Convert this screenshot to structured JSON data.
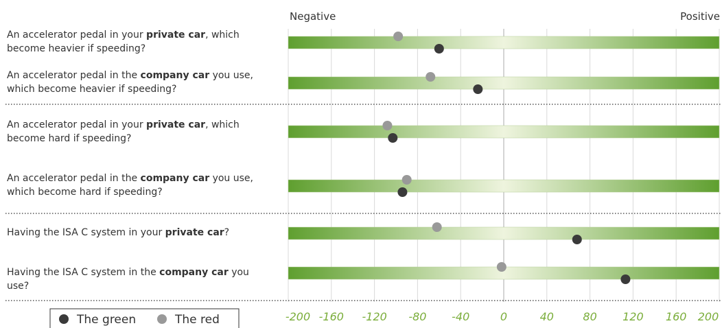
{
  "chart_data": {
    "type": "dot",
    "axis_labels": [
      "Negative",
      "Positive"
    ],
    "categories": [
      [
        "An accelerator pedal in your ",
        "private car",
        ", which become heavier if speeding?"
      ],
      [
        "An accelerator pedal in the ",
        "company car",
        " you use, which become heavier if speeding?"
      ],
      [
        "An accelerator pedal in your ",
        "private car",
        ", which become hard if speeding?"
      ],
      [
        "An accelerator pedal in the ",
        "company car",
        " you use, which become hard if speeding?"
      ],
      [
        "Having the ISA C system in your ",
        "private car",
        "?"
      ],
      [
        "Having the ISA C system in the ",
        "company car",
        " you use?"
      ]
    ],
    "series": [
      {
        "name": "The green",
        "color": "#3a3a3a",
        "values": [
          -60,
          -24,
          -103,
          -94,
          68,
          113
        ]
      },
      {
        "name": "The red",
        "color": "#999999",
        "values": [
          -98,
          -68,
          -108,
          -90,
          -62,
          -2
        ]
      }
    ],
    "xlim": [
      -200,
      200
    ],
    "xticks": [
      -200,
      -160,
      -120,
      -80,
      -40,
      0,
      40,
      80,
      120,
      160,
      200
    ],
    "grid": true
  }
}
